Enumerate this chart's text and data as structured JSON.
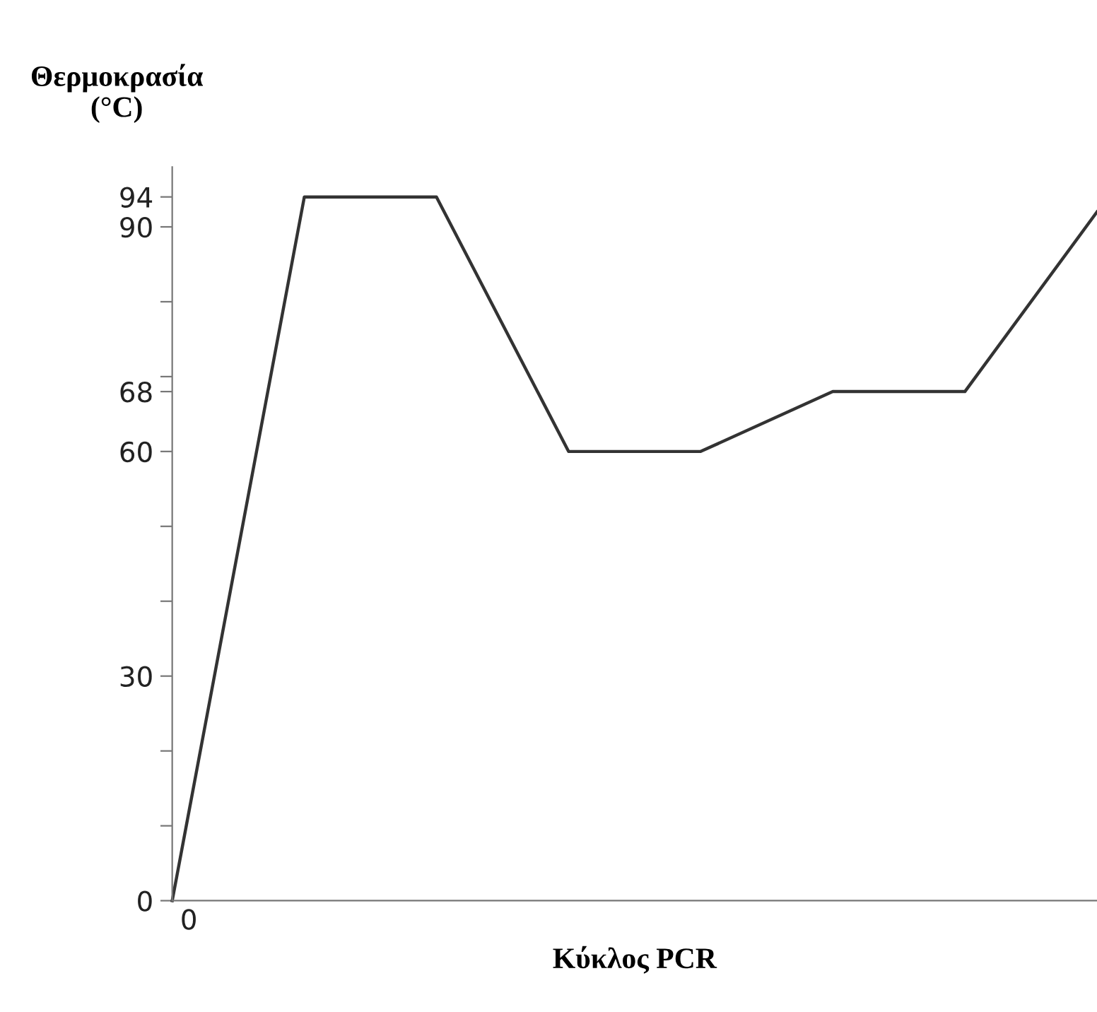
{
  "chart_data": {
    "type": "line",
    "ylabel": "Θερμοκρασία\n(°C)",
    "xlabel": "Κύκλος PCR",
    "annotations": [
      "0"
    ],
    "categories": [
      null,
      null,
      null,
      null,
      null,
      null,
      null,
      null
    ],
    "series": [
      {
        "color": "#333333",
        "values": [
          0,
          94,
          94,
          60,
          60,
          68,
          68,
          92
        ]
      }
    ],
    "ylim": [
      0,
      98
    ],
    "yticks": [
      0,
      {
        "value": 10,
        "label": null
      },
      {
        "value": 20,
        "label": null
      },
      30,
      {
        "value": 40,
        "label": null
      },
      {
        "value": 50,
        "label": null
      },
      60,
      68,
      {
        "value": 70,
        "label": null
      },
      {
        "value": 80,
        "label": null
      },
      90,
      94
    ],
    "grid": false,
    "legend": false,
    "marker": "none",
    "line_style": "solid"
  }
}
